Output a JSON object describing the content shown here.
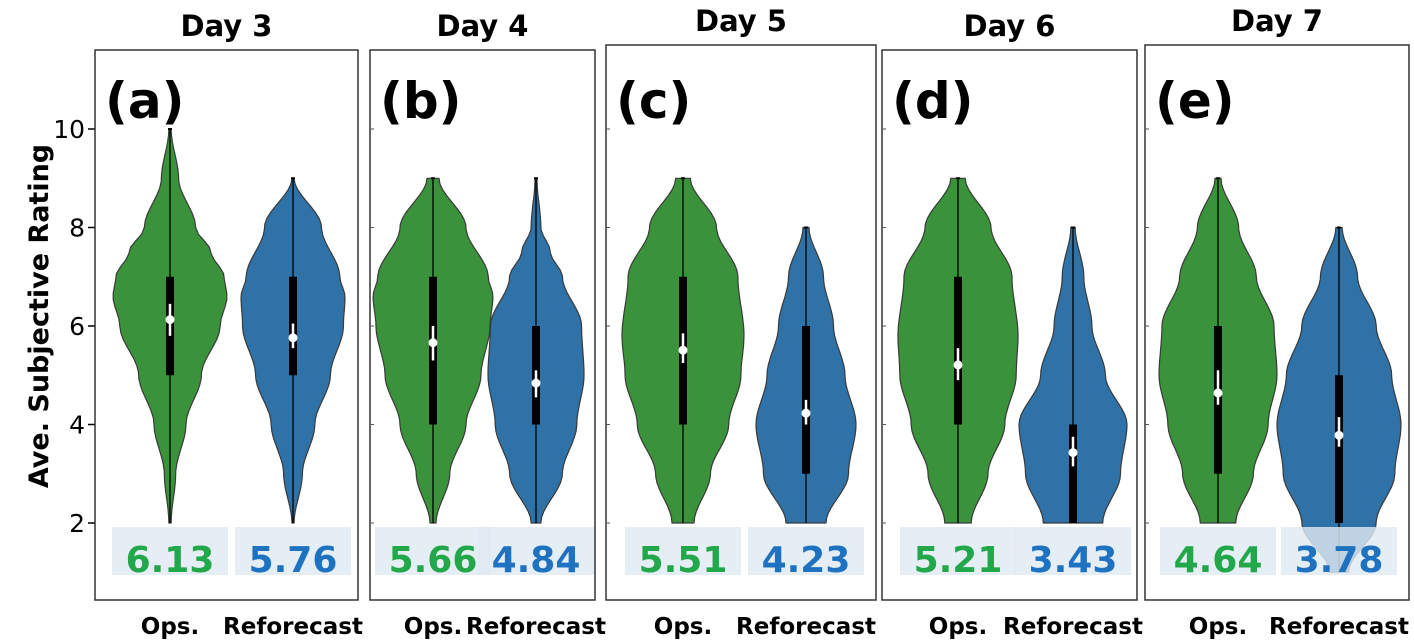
{
  "colors": {
    "ops": "#3a923a",
    "reforecast": "#2f72a8",
    "ops_mean_text": "#22a84a",
    "reforecast_mean_text": "#1f72c0",
    "shade": "#dfe9f3"
  },
  "chart_data": {
    "type": "violin",
    "ylabel": "Ave. Subjective Rating",
    "ylim": [
      1,
      11.5
    ],
    "yticks": [
      2,
      4,
      6,
      8,
      10
    ],
    "categories": [
      "Ops.",
      "Reforecast"
    ],
    "panels": [
      {
        "title": "Day 3",
        "label": "(a)",
        "violins": [
          {
            "category": "Ops.",
            "min": 2,
            "max": 10,
            "q1": 5,
            "median": 6.13,
            "q3": 7,
            "ci": [
              5.8,
              6.45
            ],
            "mean_label": "6.13",
            "density": [
              [
                2,
                0.02
              ],
              [
                3,
                0.1
              ],
              [
                4,
                0.28
              ],
              [
                5,
                0.55
              ],
              [
                6,
                0.88
              ],
              [
                6.6,
                1.0
              ],
              [
                7,
                0.95
              ],
              [
                7.5,
                0.72
              ],
              [
                8,
                0.45
              ],
              [
                9,
                0.15
              ],
              [
                10,
                0.02
              ]
            ]
          },
          {
            "category": "Reforecast",
            "min": 2,
            "max": 9,
            "q1": 5,
            "median": 5.76,
            "q3": 7,
            "ci": [
              5.55,
              6.05
            ],
            "mean_label": "5.76",
            "density": [
              [
                2,
                0.02
              ],
              [
                3,
                0.18
              ],
              [
                4,
                0.42
              ],
              [
                5,
                0.72
              ],
              [
                6,
                0.97
              ],
              [
                6.6,
                1.0
              ],
              [
                7,
                0.9
              ],
              [
                8,
                0.55
              ],
              [
                9,
                0.02
              ]
            ]
          }
        ]
      },
      {
        "title": "Day 4",
        "label": "(b)",
        "violins": [
          {
            "category": "Ops.",
            "min": 2,
            "max": 9,
            "q1": 4,
            "median": 5.66,
            "q3": 7,
            "ci": [
              5.3,
              6.0
            ],
            "mean_label": "5.66",
            "density": [
              [
                2,
                0.05
              ],
              [
                3,
                0.28
              ],
              [
                4,
                0.55
              ],
              [
                5,
                0.8
              ],
              [
                6,
                0.95
              ],
              [
                6.6,
                1.0
              ],
              [
                7,
                0.92
              ],
              [
                8,
                0.55
              ],
              [
                9,
                0.1
              ]
            ]
          },
          {
            "category": "Reforecast",
            "min": 2,
            "max": 9,
            "q1": 4,
            "median": 4.84,
            "q3": 6,
            "ci": [
              4.55,
              5.1
            ],
            "mean_label": "4.84",
            "density": [
              [
                2,
                0.1
              ],
              [
                3,
                0.55
              ],
              [
                4,
                0.85
              ],
              [
                5,
                1.0
              ],
              [
                6,
                0.95
              ],
              [
                7,
                0.55
              ],
              [
                7.5,
                0.3
              ],
              [
                8,
                0.1
              ],
              [
                9,
                0.02
              ]
            ]
          }
        ]
      },
      {
        "title": "Day 5",
        "label": "(c)",
        "violins": [
          {
            "category": "Ops.",
            "min": 2,
            "max": 9,
            "q1": 4,
            "median": 5.51,
            "q3": 7,
            "ci": [
              5.25,
              5.85
            ],
            "mean_label": "5.51",
            "density": [
              [
                2,
                0.18
              ],
              [
                3,
                0.45
              ],
              [
                4,
                0.75
              ],
              [
                5,
                0.95
              ],
              [
                5.8,
                1.0
              ],
              [
                7,
                0.9
              ],
              [
                8,
                0.55
              ],
              [
                9,
                0.12
              ]
            ]
          },
          {
            "category": "Reforecast",
            "min": 2,
            "max": 8,
            "q1": 3,
            "median": 4.23,
            "q3": 6,
            "ci": [
              4.0,
              4.5
            ],
            "mean_label": "4.23",
            "density": [
              [
                2,
                0.4
              ],
              [
                3,
                0.85
              ],
              [
                4,
                1.0
              ],
              [
                5,
                0.78
              ],
              [
                6,
                0.55
              ],
              [
                7,
                0.35
              ],
              [
                8,
                0.06
              ]
            ]
          }
        ]
      },
      {
        "title": "Day 6",
        "label": "(d)",
        "violins": [
          {
            "category": "Ops.",
            "min": 2,
            "max": 9,
            "q1": 4,
            "median": 5.21,
            "q3": 7,
            "ci": [
              4.9,
              5.55
            ],
            "mean_label": "5.21",
            "density": [
              [
                2,
                0.22
              ],
              [
                3,
                0.5
              ],
              [
                4,
                0.78
              ],
              [
                5,
                0.97
              ],
              [
                5.8,
                1.0
              ],
              [
                7,
                0.9
              ],
              [
                8,
                0.55
              ],
              [
                9,
                0.12
              ]
            ]
          },
          {
            "category": "Reforecast",
            "min": 2,
            "max": 8,
            "q1": 2,
            "median": 3.43,
            "q3": 4,
            "ci": [
              3.15,
              3.75
            ],
            "mean_label": "3.43",
            "density": [
              [
                2,
                0.55
              ],
              [
                3,
                0.88
              ],
              [
                4,
                1.0
              ],
              [
                5,
                0.6
              ],
              [
                6,
                0.35
              ],
              [
                7,
                0.2
              ],
              [
                8,
                0.04
              ]
            ]
          }
        ]
      },
      {
        "title": "Day 7",
        "label": "(e)",
        "violins": [
          {
            "category": "Ops.",
            "min": 2,
            "max": 9,
            "q1": 3,
            "median": 4.64,
            "q3": 6,
            "ci": [
              4.4,
              5.1
            ],
            "mean_label": "4.64",
            "density": [
              [
                2,
                0.3
              ],
              [
                3,
                0.6
              ],
              [
                4,
                0.85
              ],
              [
                5,
                1.0
              ],
              [
                6,
                0.95
              ],
              [
                7,
                0.65
              ],
              [
                8,
                0.35
              ],
              [
                9,
                0.05
              ]
            ]
          },
          {
            "category": "Reforecast",
            "min": 1,
            "max": 8,
            "q1": 2,
            "median": 3.78,
            "q3": 5,
            "ci": [
              3.55,
              4.15
            ],
            "mean_label": "3.78",
            "density": [
              [
                1,
                0.15
              ],
              [
                2,
                0.6
              ],
              [
                3,
                0.9
              ],
              [
                4,
                1.0
              ],
              [
                5,
                0.85
              ],
              [
                6,
                0.6
              ],
              [
                7,
                0.3
              ],
              [
                8,
                0.05
              ]
            ]
          }
        ]
      }
    ]
  }
}
